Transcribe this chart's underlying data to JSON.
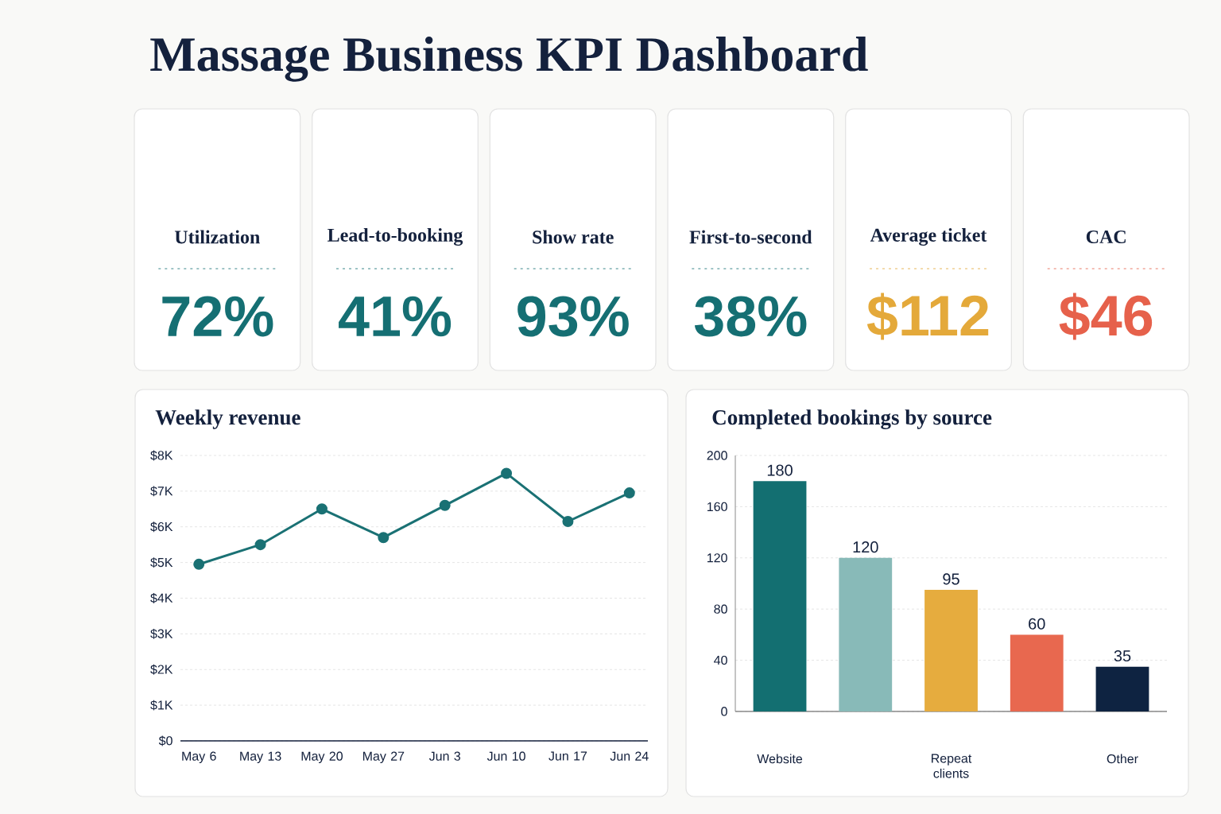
{
  "chart_data": [
    {
      "type": "other",
      "title": "Massage Business KPI Dashboard",
      "categories": [
        "Utilization",
        "Lead-to-booking",
        "Show rate",
        "First-to-second",
        "Average ticket",
        "CAC"
      ],
      "value_labels": [
        "72%",
        "41%",
        "93%",
        "38%",
        "$112",
        "$46"
      ]
    },
    {
      "type": "line",
      "title": "Weekly revenue",
      "categories": [
        "May 6",
        "May 13",
        "May 20",
        "May 27",
        "Jun 3",
        "Jun 10",
        "Jun 17",
        "Jun 24"
      ],
      "series": [
        {
          "color": "#1a7174",
          "values": [
            4.95,
            5.5,
            6.5,
            5.7,
            6.6,
            7.5,
            6.15,
            6.95
          ]
        }
      ],
      "ylim": [
        0,
        8
      ],
      "yticks": [
        {
          "value": 0,
          "label": "$0"
        },
        {
          "value": 1,
          "label": "$1K"
        },
        {
          "value": 2,
          "label": "$2K"
        },
        {
          "value": 3,
          "label": "$3K"
        },
        {
          "value": 4,
          "label": "$4K"
        },
        {
          "value": 5,
          "label": "$5K"
        },
        {
          "value": 6,
          "label": "$6K"
        },
        {
          "value": 7,
          "label": "$7K"
        },
        {
          "value": 8,
          "label": "$8K"
        }
      ],
      "grid": "y",
      "marker": "circle",
      "line_style": "solid"
    },
    {
      "type": "bar",
      "title": "Completed bookings by source",
      "categories": [
        "Website",
        null,
        "Repeat clients",
        null,
        "Other"
      ],
      "values": [
        180,
        120,
        95,
        60,
        35
      ],
      "colors": [
        "#136f71",
        "#88bab8",
        "#e6ac3e",
        "#e8684f",
        "#0e2341"
      ],
      "ylim": [
        0,
        200
      ],
      "yticks": [
        0,
        40,
        80,
        120,
        160,
        200
      ],
      "grid": "y",
      "data_labels": true
    }
  ]
}
